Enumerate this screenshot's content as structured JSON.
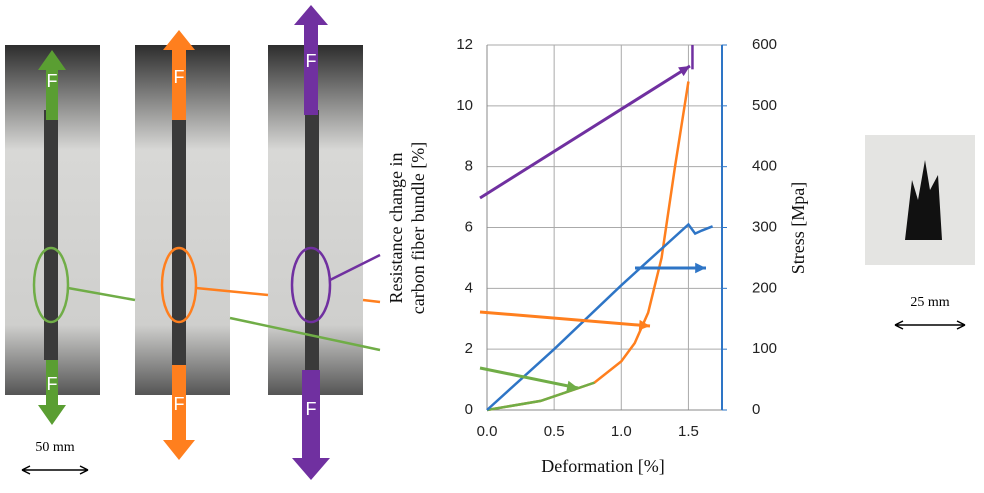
{
  "chart_data": {
    "type": "line",
    "xlabel": "Deformation  [%]",
    "ylabel": [
      "Resistance  change in",
      "carbon fiber bundle [%]"
    ],
    "y2label": "Stress [Mpa]",
    "xlim": [
      0,
      1.75
    ],
    "xticks": [
      {
        "value": 0,
        "label": "0.0"
      },
      {
        "value": 0.5,
        "label": "0.5"
      },
      {
        "value": 1,
        "label": "1.0"
      },
      {
        "value": 1.5,
        "label": "1.5"
      }
    ],
    "ylim": [
      0,
      12
    ],
    "yticks": [
      0,
      2,
      4,
      6,
      8,
      10,
      12
    ],
    "y2lim": [
      0,
      600
    ],
    "y2ticks": [
      0,
      100,
      200,
      300,
      400,
      500,
      600
    ],
    "grid": true,
    "series": [
      {
        "color": "#ff7f1e",
        "x": [
          0,
          0.4,
          0.8,
          1.0,
          1.1,
          1.2,
          1.3,
          1.4,
          1.5
        ],
        "values": [
          0,
          0.3,
          0.9,
          1.6,
          2.2,
          3.2,
          5,
          8,
          10.8
        ]
      },
      {
        "color": "#70ad47",
        "x": [
          0,
          0.4,
          0.8
        ],
        "values": [
          0,
          0.3,
          0.9
        ]
      },
      {
        "color": "#7030a0",
        "x": [
          1.53,
          1.53
        ],
        "values": [
          11.2,
          12
        ]
      },
      {
        "color": "#2e75c6",
        "axis": "y2",
        "x": [
          0,
          0.5,
          1.0,
          1.5,
          1.55,
          1.6,
          1.68
        ],
        "values": [
          0,
          100,
          205,
          305,
          290,
          295,
          302
        ]
      }
    ]
  },
  "photos": {
    "force_label": "F",
    "left_scale": "50 mm",
    "right_scale": "25 mm"
  }
}
